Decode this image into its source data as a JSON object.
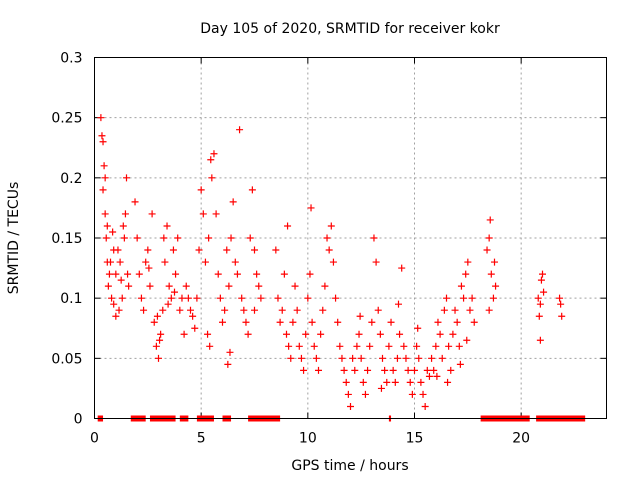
{
  "chart_data": {
    "type": "scatter",
    "title": "Day 105 of 2020, SRMTID for receiver kokr",
    "xlabel": "GPS time / hours",
    "ylabel": "SRMTID / TECUs",
    "xlim": [
      0,
      24
    ],
    "ylim": [
      0,
      0.3
    ],
    "x_ticks": [
      0,
      5,
      10,
      15,
      20
    ],
    "y_ticks": [
      0,
      0.05,
      0.1,
      0.15,
      0.2,
      0.25,
      0.3
    ],
    "x_tick_labels": [
      "0",
      "5",
      "10",
      "15",
      "20"
    ],
    "y_tick_labels": [
      "0",
      "0.05",
      "0.1",
      "0.15",
      "0.2",
      "0.25",
      "0.3"
    ],
    "grid": true,
    "marker": "+",
    "color": "#ff0000",
    "series": [
      {
        "name": "SRMTID",
        "points": [
          [
            0.3,
            0.25
          ],
          [
            0.35,
            0.235
          ],
          [
            0.4,
            0.23
          ],
          [
            0.45,
            0.21
          ],
          [
            0.5,
            0.2
          ],
          [
            0.4,
            0.19
          ],
          [
            0.5,
            0.17
          ],
          [
            0.6,
            0.16
          ],
          [
            0.55,
            0.15
          ],
          [
            0.6,
            0.13
          ],
          [
            0.7,
            0.12
          ],
          [
            0.65,
            0.11
          ],
          [
            0.8,
            0.1
          ],
          [
            0.9,
            0.095
          ],
          [
            1.0,
            0.12
          ],
          [
            1.1,
            0.14
          ],
          [
            1.2,
            0.13
          ],
          [
            1.25,
            0.115
          ],
          [
            1.3,
            0.1
          ],
          [
            1.4,
            0.15
          ],
          [
            1.45,
            0.17
          ],
          [
            1.5,
            0.2
          ],
          [
            1.55,
            0.12
          ],
          [
            1.6,
            0.11
          ],
          [
            1.0,
            0.085
          ],
          [
            0.9,
            0.14
          ],
          [
            0.75,
            0.13
          ],
          [
            0.85,
            0.155
          ],
          [
            1.15,
            0.09
          ],
          [
            1.35,
            0.16
          ],
          [
            1.9,
            0.18
          ],
          [
            2.0,
            0.15
          ],
          [
            2.1,
            0.12
          ],
          [
            2.2,
            0.1
          ],
          [
            2.3,
            0.09
          ],
          [
            2.4,
            0.13
          ],
          [
            2.5,
            0.14
          ],
          [
            2.6,
            0.11
          ],
          [
            2.7,
            0.17
          ],
          [
            2.8,
            0.08
          ],
          [
            2.9,
            0.06
          ],
          [
            3.0,
            0.05
          ],
          [
            3.1,
            0.07
          ],
          [
            3.2,
            0.09
          ],
          [
            3.3,
            0.13
          ],
          [
            3.4,
            0.16
          ],
          [
            3.5,
            0.11
          ],
          [
            3.6,
            0.1
          ],
          [
            3.7,
            0.14
          ],
          [
            3.8,
            0.12
          ],
          [
            3.9,
            0.15
          ],
          [
            4.0,
            0.09
          ],
          [
            4.1,
            0.1
          ],
          [
            4.2,
            0.07
          ],
          [
            2.55,
            0.125
          ],
          [
            2.95,
            0.085
          ],
          [
            3.25,
            0.15
          ],
          [
            3.45,
            0.095
          ],
          [
            3.75,
            0.105
          ],
          [
            3.05,
            0.065
          ],
          [
            4.3,
            0.11
          ],
          [
            4.4,
            0.1
          ],
          [
            4.5,
            0.09
          ],
          [
            4.6,
            0.085
          ],
          [
            4.7,
            0.075
          ],
          [
            4.8,
            0.1
          ],
          [
            4.9,
            0.14
          ],
          [
            5.0,
            0.19
          ],
          [
            5.1,
            0.17
          ],
          [
            5.2,
            0.13
          ],
          [
            5.3,
            0.07
          ],
          [
            5.4,
            0.06
          ],
          [
            5.5,
            0.2
          ],
          [
            5.6,
            0.22
          ],
          [
            5.7,
            0.17
          ],
          [
            5.8,
            0.12
          ],
          [
            5.9,
            0.1
          ],
          [
            6.0,
            0.08
          ],
          [
            6.1,
            0.09
          ],
          [
            6.2,
            0.14
          ],
          [
            6.3,
            0.11
          ],
          [
            6.4,
            0.15
          ],
          [
            6.5,
            0.18
          ],
          [
            6.6,
            0.13
          ],
          [
            6.7,
            0.12
          ],
          [
            6.8,
            0.24
          ],
          [
            6.9,
            0.1
          ],
          [
            7.0,
            0.09
          ],
          [
            7.1,
            0.08
          ],
          [
            7.2,
            0.07
          ],
          [
            7.3,
            0.15
          ],
          [
            7.4,
            0.19
          ],
          [
            7.5,
            0.14
          ],
          [
            7.6,
            0.12
          ],
          [
            7.7,
            0.11
          ],
          [
            7.8,
            0.1
          ],
          [
            7.5,
            0.09
          ],
          [
            5.45,
            0.215
          ],
          [
            5.35,
            0.15
          ],
          [
            6.35,
            0.055
          ],
          [
            6.25,
            0.045
          ],
          [
            8.5,
            0.14
          ],
          [
            8.6,
            0.1
          ],
          [
            8.7,
            0.08
          ],
          [
            8.8,
            0.09
          ],
          [
            8.9,
            0.12
          ],
          [
            9.0,
            0.07
          ],
          [
            9.1,
            0.06
          ],
          [
            9.2,
            0.05
          ],
          [
            9.3,
            0.08
          ],
          [
            9.4,
            0.11
          ],
          [
            9.5,
            0.09
          ],
          [
            9.6,
            0.06
          ],
          [
            9.7,
            0.05
          ],
          [
            9.8,
            0.04
          ],
          [
            9.9,
            0.07
          ],
          [
            10.0,
            0.1
          ],
          [
            10.1,
            0.12
          ],
          [
            10.2,
            0.08
          ],
          [
            10.3,
            0.06
          ],
          [
            10.4,
            0.05
          ],
          [
            10.5,
            0.04
          ],
          [
            10.6,
            0.07
          ],
          [
            10.7,
            0.09
          ],
          [
            10.8,
            0.11
          ],
          [
            10.9,
            0.15
          ],
          [
            11.0,
            0.14
          ],
          [
            11.1,
            0.16
          ],
          [
            11.2,
            0.13
          ],
          [
            11.3,
            0.1
          ],
          [
            11.4,
            0.08
          ],
          [
            11.5,
            0.06
          ],
          [
            11.6,
            0.05
          ],
          [
            11.7,
            0.04
          ],
          [
            11.8,
            0.03
          ],
          [
            11.9,
            0.02
          ],
          [
            12.0,
            0.01
          ],
          [
            10.15,
            0.175
          ],
          [
            9.05,
            0.16
          ],
          [
            12.1,
            0.05
          ],
          [
            12.2,
            0.04
          ],
          [
            12.3,
            0.06
          ],
          [
            12.4,
            0.07
          ],
          [
            12.5,
            0.05
          ],
          [
            12.6,
            0.03
          ],
          [
            12.7,
            0.02
          ],
          [
            12.8,
            0.04
          ],
          [
            12.9,
            0.06
          ],
          [
            13.0,
            0.08
          ],
          [
            13.1,
            0.15
          ],
          [
            13.2,
            0.13
          ],
          [
            13.3,
            0.09
          ],
          [
            13.4,
            0.07
          ],
          [
            13.5,
            0.05
          ],
          [
            13.6,
            0.04
          ],
          [
            13.7,
            0.03
          ],
          [
            13.8,
            0.06
          ],
          [
            13.9,
            0.08
          ],
          [
            14.0,
            0.04
          ],
          [
            14.1,
            0.03
          ],
          [
            14.2,
            0.05
          ],
          [
            14.3,
            0.07
          ],
          [
            14.4,
            0.125
          ],
          [
            14.5,
            0.06
          ],
          [
            14.6,
            0.05
          ],
          [
            14.7,
            0.04
          ],
          [
            14.8,
            0.03
          ],
          [
            14.9,
            0.02
          ],
          [
            15.0,
            0.04
          ],
          [
            15.1,
            0.06
          ],
          [
            15.2,
            0.05
          ],
          [
            15.3,
            0.03
          ],
          [
            15.4,
            0.02
          ],
          [
            15.5,
            0.01
          ],
          [
            15.6,
            0.04
          ],
          [
            15.7,
            0.035
          ],
          [
            15.8,
            0.05
          ],
          [
            12.45,
            0.085
          ],
          [
            13.45,
            0.025
          ],
          [
            14.25,
            0.095
          ],
          [
            15.15,
            0.075
          ],
          [
            15.9,
            0.04
          ],
          [
            16.0,
            0.06
          ],
          [
            16.1,
            0.08
          ],
          [
            16.2,
            0.07
          ],
          [
            16.3,
            0.05
          ],
          [
            16.4,
            0.09
          ],
          [
            16.5,
            0.1
          ],
          [
            16.6,
            0.06
          ],
          [
            16.7,
            0.04
          ],
          [
            16.8,
            0.07
          ],
          [
            16.9,
            0.09
          ],
          [
            17.0,
            0.08
          ],
          [
            17.1,
            0.06
          ],
          [
            17.2,
            0.11
          ],
          [
            17.3,
            0.1
          ],
          [
            17.4,
            0.12
          ],
          [
            17.5,
            0.13
          ],
          [
            17.6,
            0.09
          ],
          [
            17.7,
            0.1
          ],
          [
            17.8,
            0.08
          ],
          [
            16.05,
            0.035
          ],
          [
            16.55,
            0.03
          ],
          [
            17.15,
            0.045
          ],
          [
            17.45,
            0.065
          ],
          [
            18.4,
            0.14
          ],
          [
            18.5,
            0.15
          ],
          [
            18.55,
            0.165
          ],
          [
            18.6,
            0.12
          ],
          [
            18.7,
            0.1
          ],
          [
            18.5,
            0.09
          ],
          [
            18.8,
            0.11
          ],
          [
            18.75,
            0.13
          ],
          [
            20.8,
            0.1
          ],
          [
            20.85,
            0.085
          ],
          [
            20.9,
            0.095
          ],
          [
            21.0,
            0.12
          ],
          [
            20.95,
            0.115
          ],
          [
            21.05,
            0.105
          ],
          [
            20.9,
            0.065
          ],
          [
            21.8,
            0.1
          ],
          [
            21.85,
            0.095
          ],
          [
            21.9,
            0.085
          ]
        ],
        "zero_intervals": [
          [
            0.15,
            0.4
          ],
          [
            1.7,
            2.4
          ],
          [
            2.6,
            3.8
          ],
          [
            4.0,
            4.4
          ],
          [
            4.8,
            5.6
          ],
          [
            6.0,
            6.4
          ],
          [
            7.2,
            8.7
          ],
          [
            13.8,
            13.9
          ],
          [
            18.1,
            20.4
          ],
          [
            20.7,
            23.0
          ]
        ]
      }
    ]
  }
}
